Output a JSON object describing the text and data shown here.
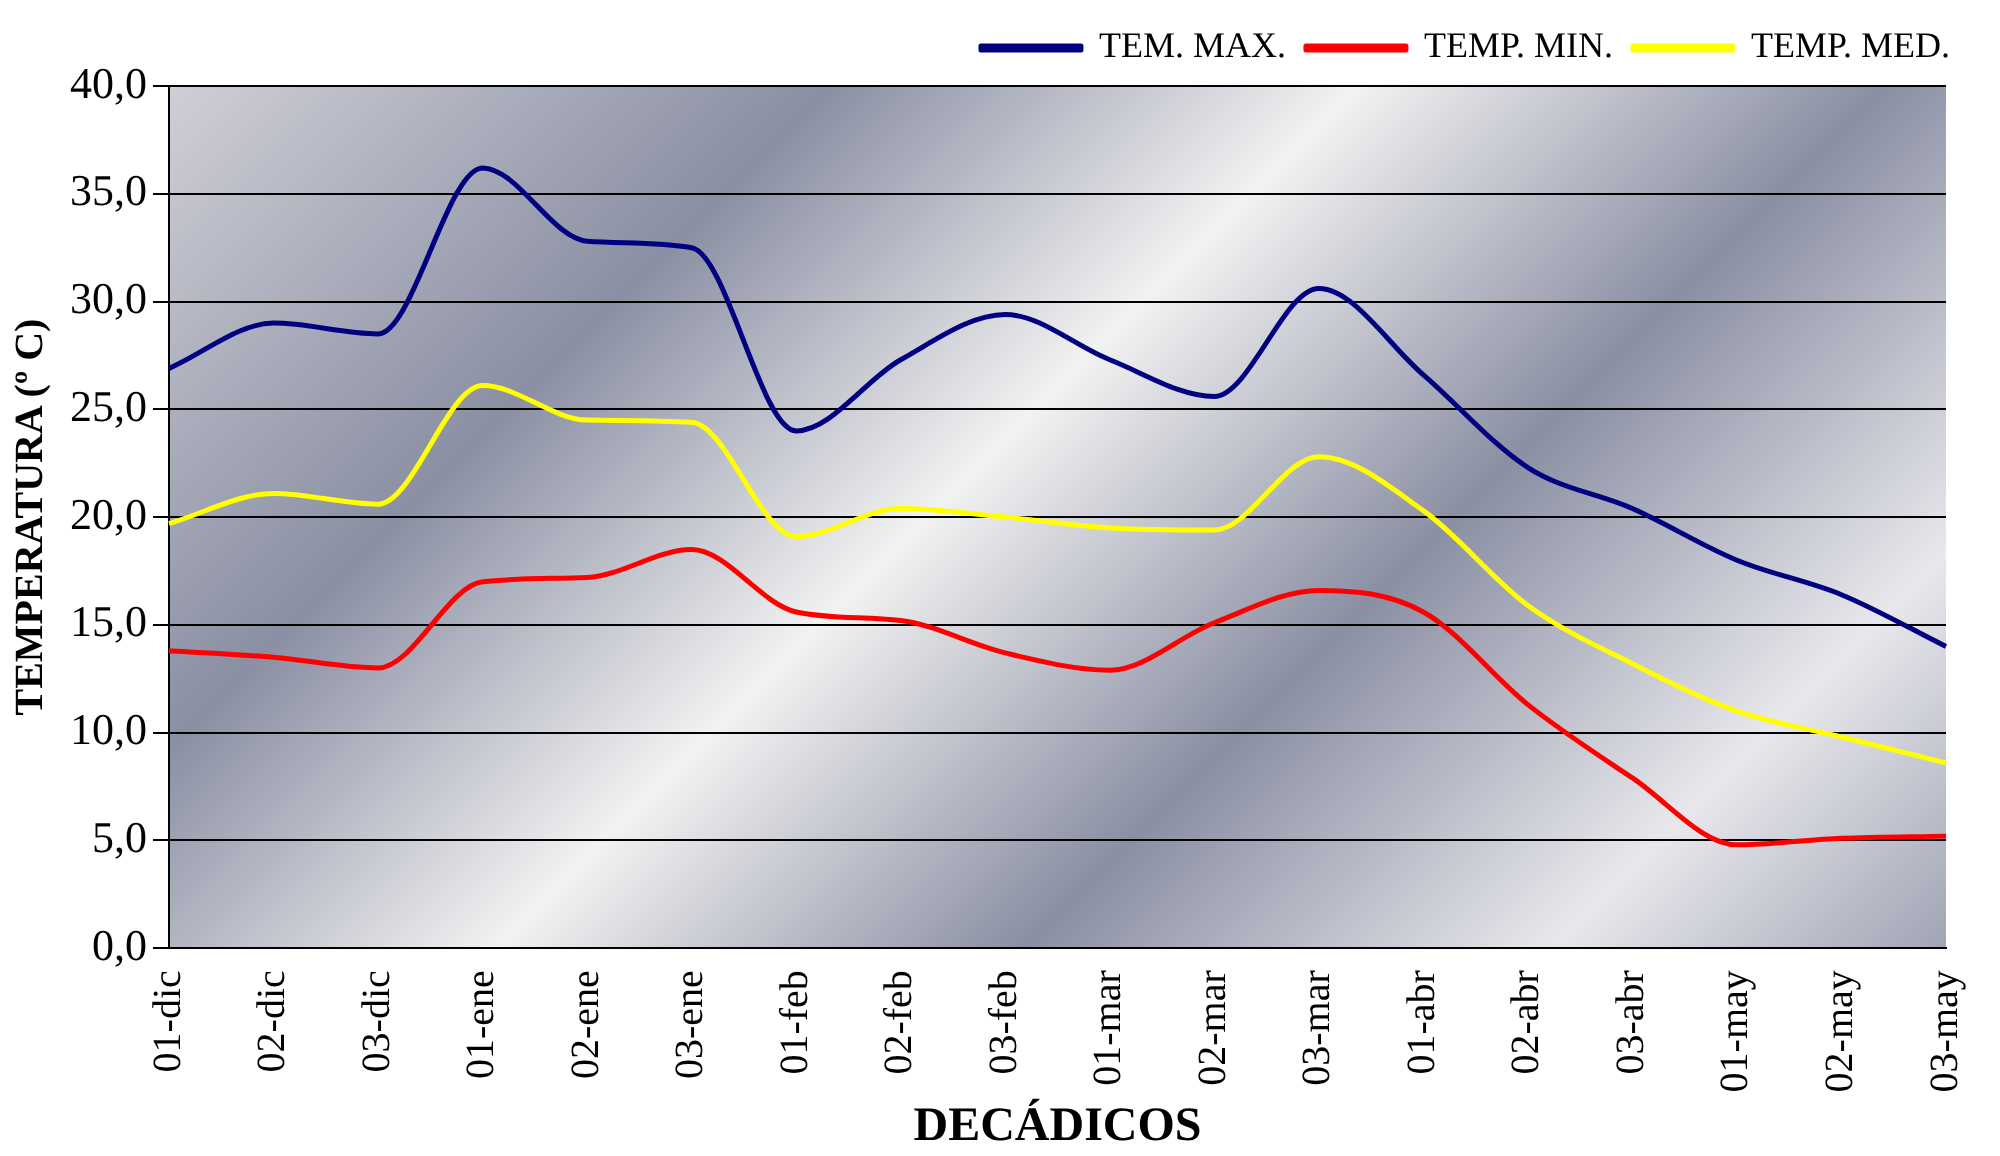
{
  "chart_data": {
    "type": "line",
    "xlabel": "DECÁDICOS",
    "ylabel": "TEMPERATURA (º C)",
    "categories": [
      "01-dic",
      "02-dic",
      "03-dic",
      "01-ene",
      "02-ene",
      "03-ene",
      "01-feb",
      "02-feb",
      "03-feb",
      "01-mar",
      "02-mar",
      "03-mar",
      "01-abr",
      "02-abr",
      "03-abr",
      "01-may",
      "02-may",
      "03-may"
    ],
    "series": [
      {
        "name": "TEM. MAX.",
        "color": "#000080",
        "values": [
          26.9,
          29.0,
          28.5,
          36.2,
          32.8,
          32.5,
          24.0,
          27.3,
          29.4,
          27.3,
          25.6,
          30.6,
          26.6,
          22.3,
          20.4,
          18.0,
          16.4,
          14.0
        ]
      },
      {
        "name": "TEMP. MIN.",
        "color": "#ff0000",
        "values": [
          13.8,
          13.5,
          13.0,
          17.0,
          17.2,
          18.5,
          15.6,
          15.2,
          13.7,
          12.9,
          15.1,
          16.6,
          15.6,
          11.3,
          7.9,
          4.8,
          5.1,
          5.2
        ]
      },
      {
        "name": "TEMP. MED.",
        "color": "#ffff00",
        "values": [
          19.7,
          21.1,
          20.6,
          26.1,
          24.5,
          24.4,
          19.1,
          20.4,
          20.0,
          19.5,
          19.4,
          22.8,
          20.3,
          15.9,
          13.2,
          11.0,
          9.8,
          8.6
        ]
      }
    ],
    "ylim": [
      0,
      40
    ],
    "yticks": [
      {
        "value": 0,
        "label": "0,0"
      },
      {
        "value": 5,
        "label": "5,0"
      },
      {
        "value": 10,
        "label": "10,0"
      },
      {
        "value": 15,
        "label": "15,0"
      },
      {
        "value": 20,
        "label": "20,0"
      },
      {
        "value": 25,
        "label": "25,0"
      },
      {
        "value": 30,
        "label": "30,0"
      },
      {
        "value": 35,
        "label": "35,0"
      },
      {
        "value": 40,
        "label": "40,0"
      }
    ],
    "grid": "y",
    "legend": "top right",
    "line_style": "solid"
  }
}
